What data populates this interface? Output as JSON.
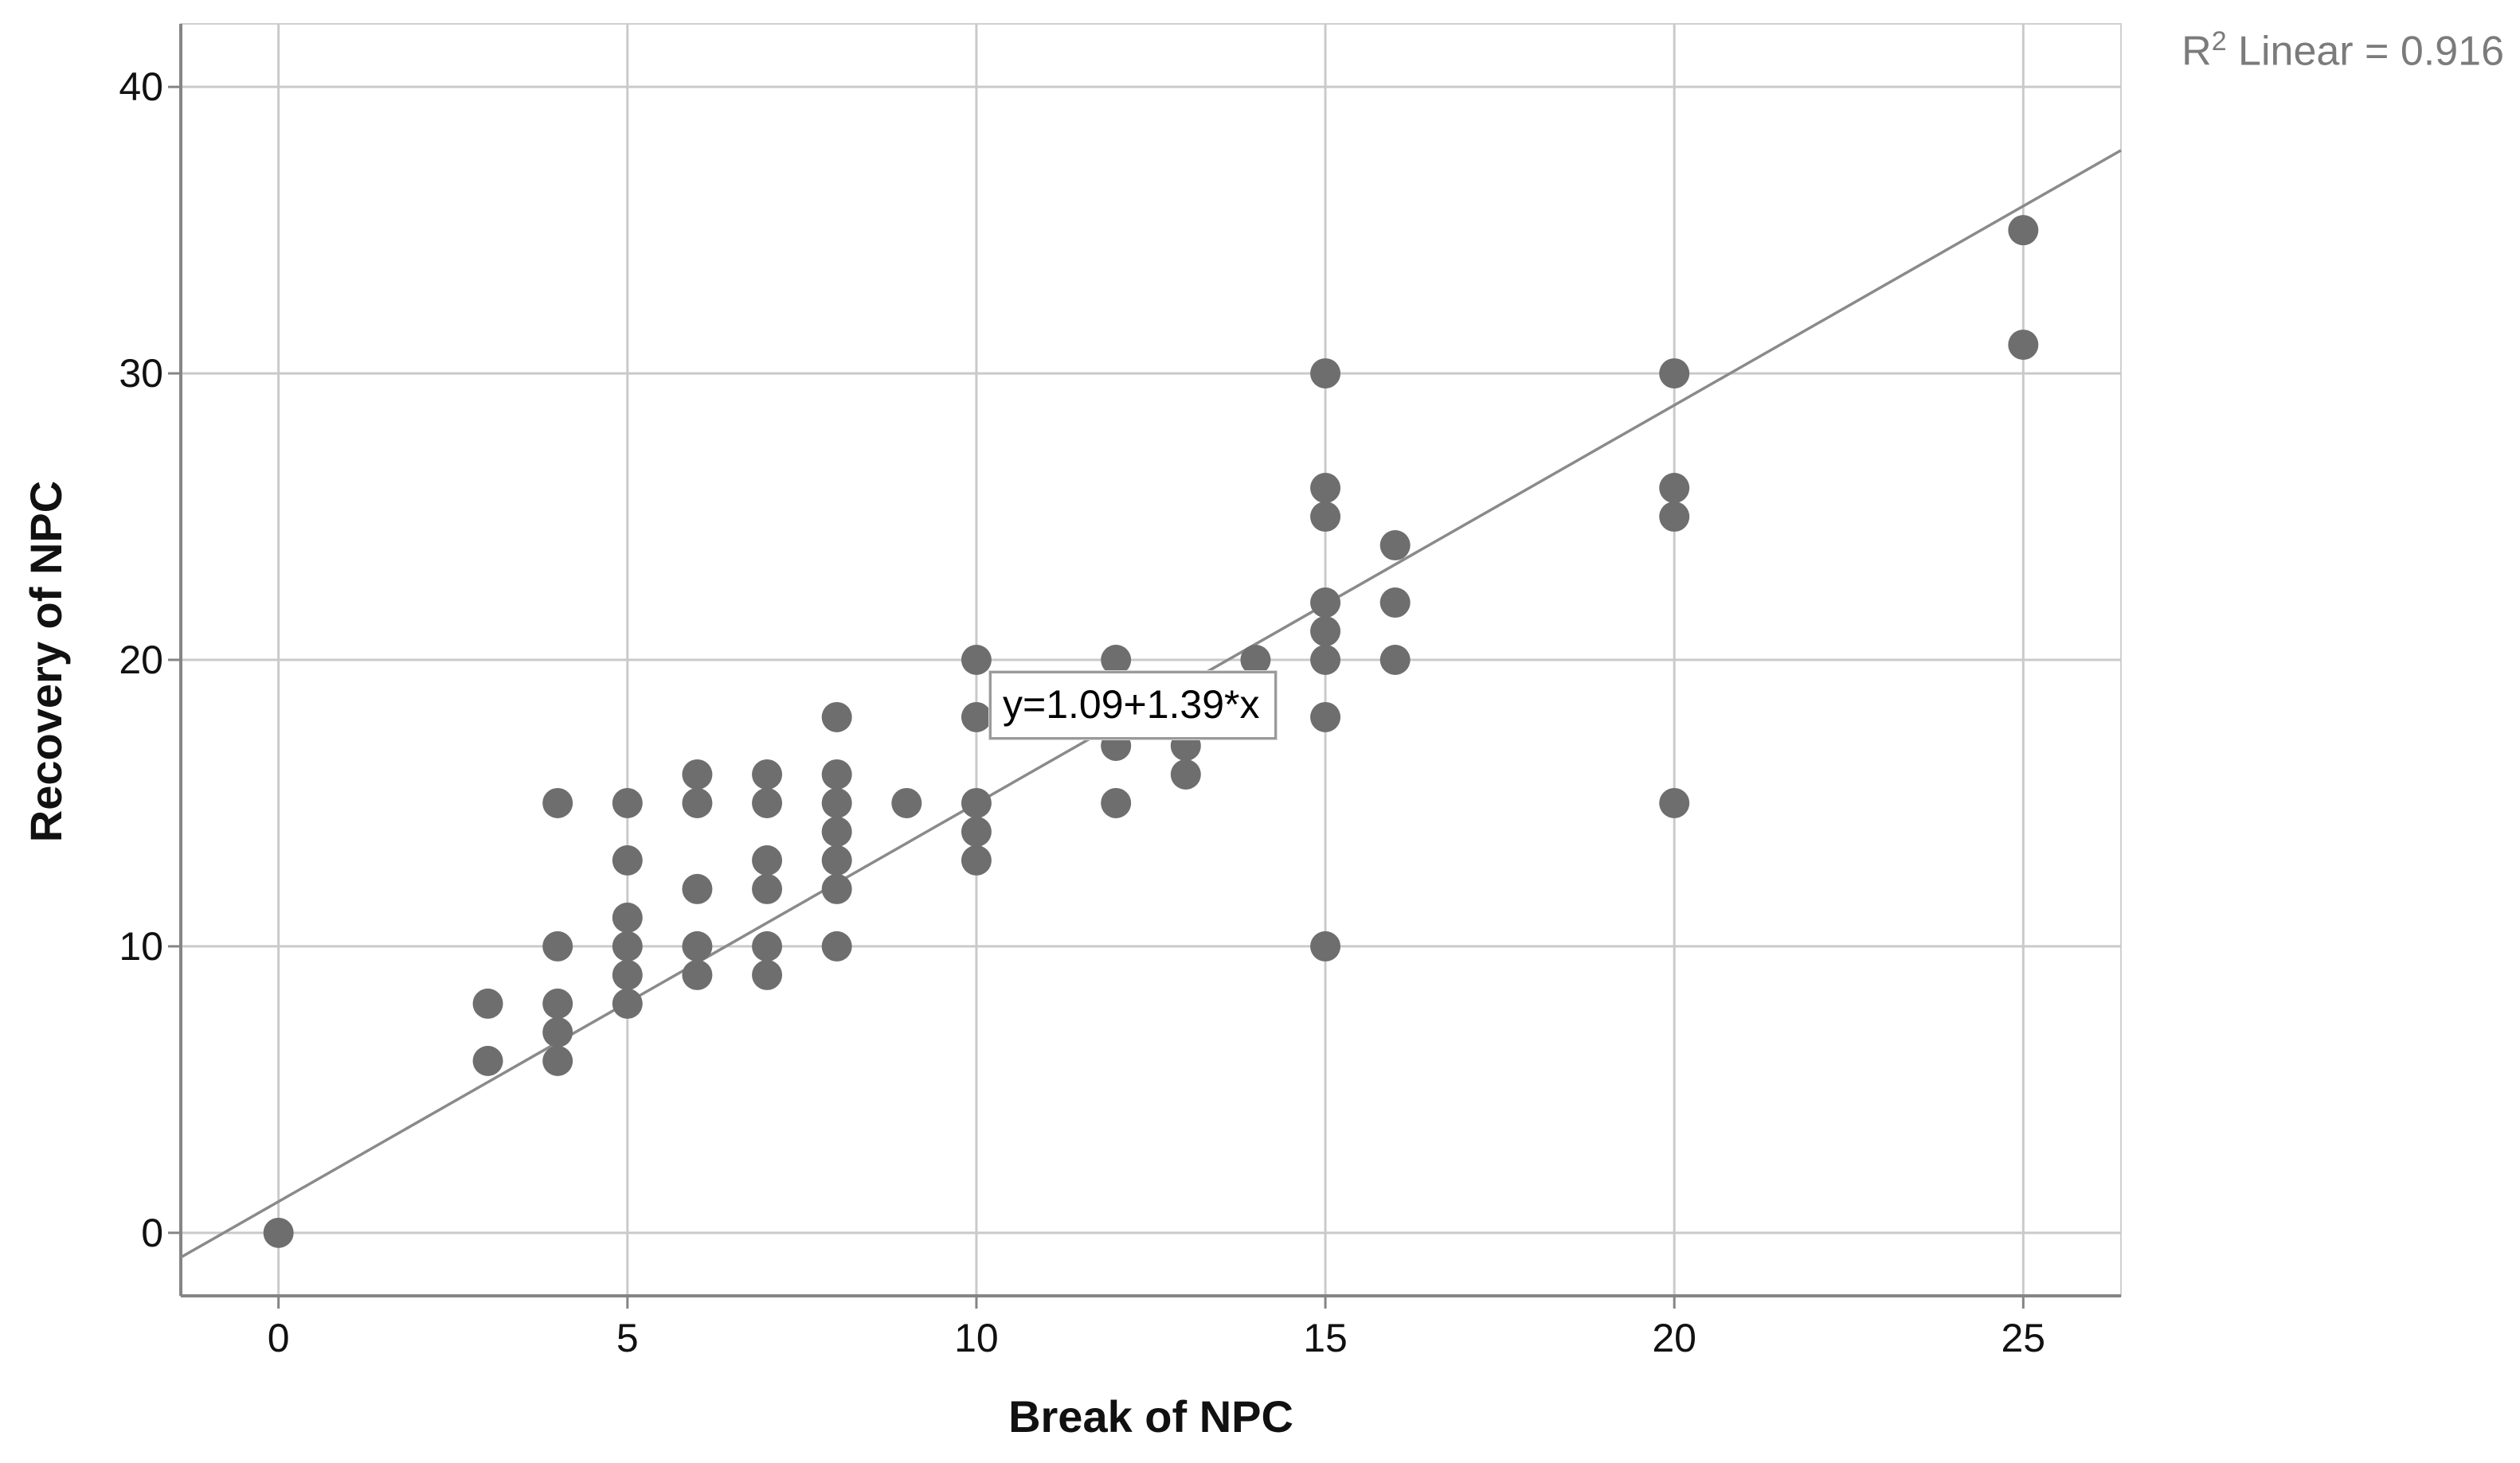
{
  "chart_data": {
    "type": "scatter",
    "title": "",
    "xlabel": "Break of NPC",
    "ylabel": "Recovery of NPC",
    "x_ticks": [
      0,
      5,
      10,
      15,
      20,
      25
    ],
    "y_ticks": [
      0,
      10,
      20,
      30,
      40
    ],
    "xlim": [
      -1.4,
      26.4
    ],
    "ylim": [
      -2.2,
      42.2
    ],
    "grid": true,
    "legend": false,
    "points": [
      [
        0,
        0
      ],
      [
        3,
        6
      ],
      [
        3,
        8
      ],
      [
        4,
        6
      ],
      [
        4,
        7
      ],
      [
        4,
        8
      ],
      [
        4,
        10
      ],
      [
        4,
        15
      ],
      [
        5,
        8
      ],
      [
        5,
        9
      ],
      [
        5,
        10
      ],
      [
        5,
        11
      ],
      [
        5,
        13
      ],
      [
        5,
        15
      ],
      [
        6,
        9
      ],
      [
        6,
        10
      ],
      [
        6,
        12
      ],
      [
        6,
        15
      ],
      [
        6,
        16
      ],
      [
        7,
        9
      ],
      [
        7,
        10
      ],
      [
        7,
        12
      ],
      [
        7,
        13
      ],
      [
        7,
        15
      ],
      [
        7,
        16
      ],
      [
        8,
        10
      ],
      [
        8,
        12
      ],
      [
        8,
        13
      ],
      [
        8,
        14
      ],
      [
        8,
        15
      ],
      [
        8,
        16
      ],
      [
        8,
        18
      ],
      [
        9,
        15
      ],
      [
        10,
        13
      ],
      [
        10,
        14
      ],
      [
        10,
        15
      ],
      [
        10,
        18
      ],
      [
        10,
        20
      ],
      [
        12,
        15
      ],
      [
        12,
        17
      ],
      [
        12,
        20
      ],
      [
        13,
        16
      ],
      [
        13,
        17
      ],
      [
        14,
        20
      ],
      [
        15,
        10
      ],
      [
        15,
        18
      ],
      [
        15,
        20
      ],
      [
        15,
        21
      ],
      [
        15,
        22
      ],
      [
        15,
        25
      ],
      [
        15,
        26
      ],
      [
        15,
        30
      ],
      [
        16,
        20
      ],
      [
        16,
        22
      ],
      [
        16,
        24
      ],
      [
        20,
        15
      ],
      [
        20,
        25
      ],
      [
        20,
        26
      ],
      [
        20,
        30
      ],
      [
        25,
        31
      ],
      [
        25,
        35
      ]
    ],
    "trendline": {
      "slope": 1.39,
      "intercept": 1.09,
      "label": "y=1.09+1.39*x"
    },
    "r2": {
      "prefix": "R",
      "sup": "2",
      "rest": " Linear = 0.916",
      "value": 0.916
    },
    "colors": {
      "point": "#6e6e6e",
      "grid": "#cacaca",
      "axis": "#858585",
      "trend": "#8a8a8a",
      "frame": "#d0d0d0",
      "r2_text": "#7b7b7b",
      "text": "#111111",
      "label_box_border": "#9a9a9a"
    }
  }
}
